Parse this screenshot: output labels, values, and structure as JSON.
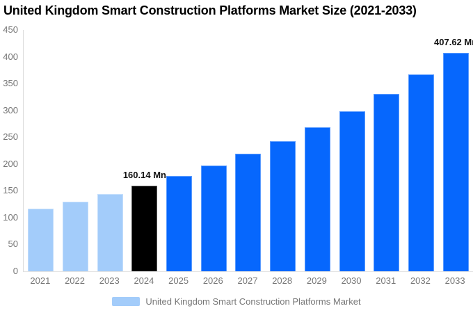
{
  "chart_data": {
    "type": "bar",
    "title": "United Kingdom Smart Construction Platforms Market Size (2021-2033)",
    "categories": [
      "2021",
      "2022",
      "2023",
      "2024",
      "2025",
      "2026",
      "2027",
      "2028",
      "2029",
      "2030",
      "2031",
      "2032",
      "2033"
    ],
    "values": [
      117.29,
      130.12,
      144.35,
      160.14,
      177.66,
      197.1,
      218.65,
      242.56,
      269.08,
      298.5,
      331.14,
      367.35,
      407.62
    ],
    "unit": "Mn",
    "data_labels": [
      null,
      null,
      null,
      "160.14 Mn",
      null,
      null,
      null,
      null,
      null,
      null,
      null,
      null,
      "407.62 Mn"
    ],
    "bar_colors": [
      "#a3ccfa",
      "#a3ccfa",
      "#a3ccfa",
      "#000000",
      "#0667fd",
      "#0667fd",
      "#0667fd",
      "#0667fd",
      "#0667fd",
      "#0667fd",
      "#0667fd",
      "#0667fd",
      "#0667fd"
    ],
    "xlabel": "",
    "ylabel": "",
    "ylim": [
      0,
      450
    ],
    "yticks": [
      0,
      50,
      100,
      150,
      200,
      250,
      300,
      350,
      400,
      450
    ],
    "grid": false,
    "legend": {
      "position": "bottom",
      "entries": [
        {
          "label": "United Kingdom Smart Construction Platforms Market",
          "swatch_color": "#a3ccfa"
        }
      ]
    },
    "colors": {
      "historical_bar": "#a3ccfa",
      "highlight_bar": "#000000",
      "forecast_bar": "#0667fd",
      "axis_text": "#757575",
      "title_text": "#000000"
    }
  }
}
